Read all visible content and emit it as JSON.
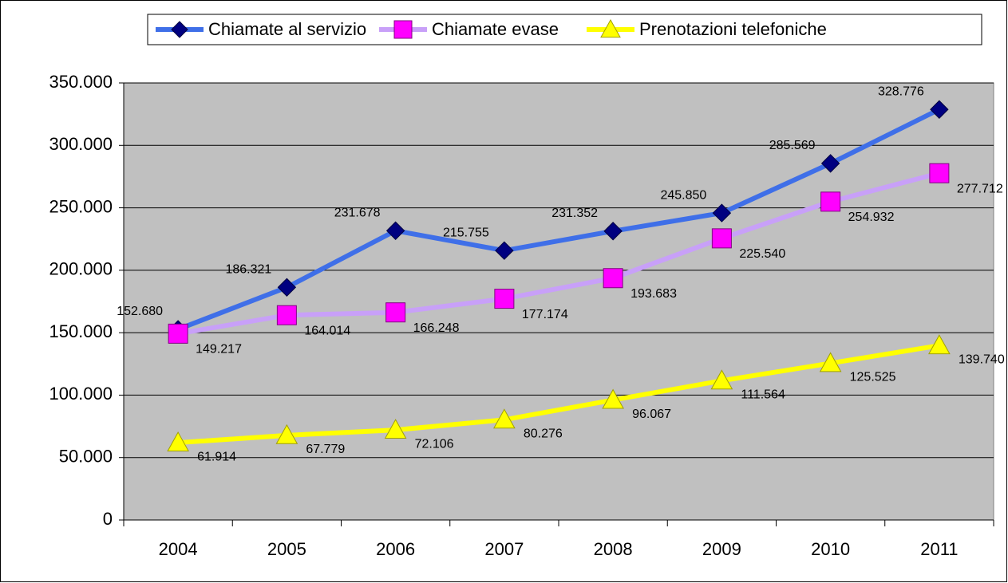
{
  "chart_data": {
    "type": "line",
    "categories": [
      "2004",
      "2005",
      "2006",
      "2007",
      "2008",
      "2009",
      "2010",
      "2011"
    ],
    "series": [
      {
        "name": "Chiamate al servizio",
        "color": "#3f6fe8",
        "marker_color": "#000080",
        "marker": "diamond",
        "values": [
          152680,
          186321,
          231678,
          215755,
          231352,
          245850,
          285569,
          328776
        ],
        "value_labels": [
          "152.680",
          "186.321",
          "231.678",
          "215.755",
          "231.352",
          "245.850",
          "285.569",
          "328.776"
        ]
      },
      {
        "name": "Chiamate evase",
        "color": "#c8a0f8",
        "marker_color": "#ff00ff",
        "marker": "square",
        "values": [
          149217,
          164014,
          166248,
          177174,
          193683,
          225540,
          254932,
          277712
        ],
        "value_labels": [
          "149.217",
          "164.014",
          "166.248",
          "177.174",
          "193.683",
          "225.540",
          "254.932",
          "277.712"
        ]
      },
      {
        "name": "Prenotazioni telefoniche",
        "color": "#ffff00",
        "marker_color": "#ffff00",
        "marker": "triangle",
        "values": [
          61914,
          67779,
          72106,
          80276,
          96067,
          111564,
          125525,
          139740
        ],
        "value_labels": [
          "61.914",
          "67.779",
          "72.106",
          "80.276",
          "96.067",
          "111.564",
          "125.525",
          "139.740"
        ]
      }
    ],
    "ylim": [
      0,
      350000
    ],
    "yticks": [
      0,
      {
        "value": 50000,
        "label": "50.000"
      },
      {
        "value": 100000,
        "label": "100.000"
      },
      {
        "value": 150000,
        "label": "150.000"
      },
      {
        "value": 200000,
        "label": "200.000"
      },
      {
        "value": 250000,
        "label": "250.000"
      },
      {
        "value": 300000,
        "label": "300.000"
      },
      {
        "value": 350000,
        "label": "350.000"
      }
    ],
    "grid": true,
    "legend": "top",
    "plot_background": "#c0c0c0"
  }
}
